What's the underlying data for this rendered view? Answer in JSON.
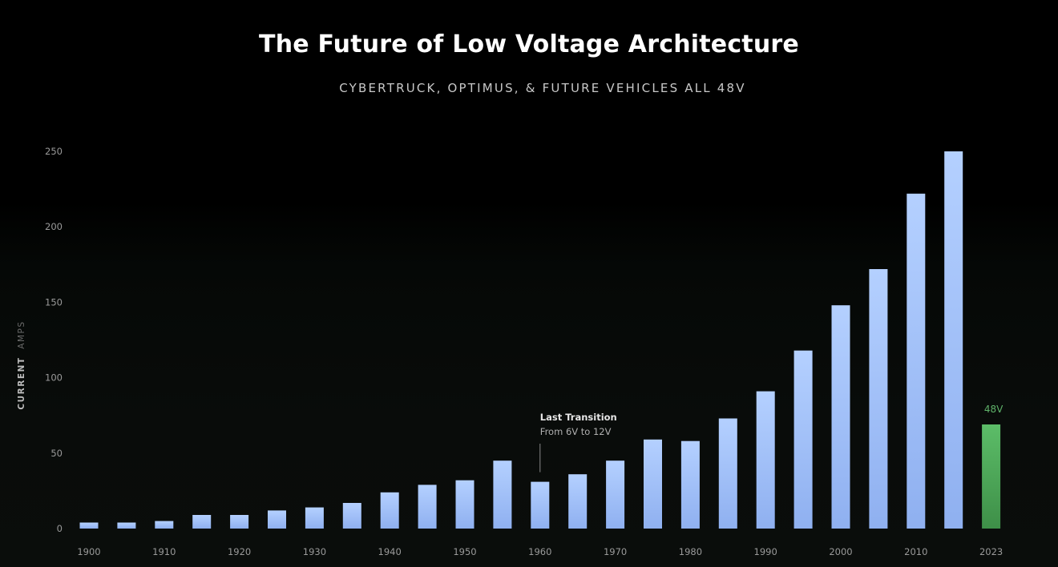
{
  "chart_data": {
    "type": "bar",
    "title": "The Future of Low Voltage Architecture",
    "subtitle": "CYBERTRUCK, OPTIMUS, & FUTURE VEHICLES ALL 48V",
    "ylabel": "CURRENT AMPS",
    "ylabel_parts": [
      "CURRENT",
      "AMPS"
    ],
    "xlabel": "",
    "ylim": [
      0,
      250
    ],
    "yticks": [
      "0",
      "50",
      "100",
      "150",
      "200",
      "250"
    ],
    "ytick_values": [
      0,
      50,
      100,
      150,
      200,
      250
    ],
    "grid": false,
    "legend": "none",
    "categories": [
      "1900",
      "1905",
      "1910",
      "1915",
      "1920",
      "1925",
      "1930",
      "1935",
      "1940",
      "1945",
      "1950",
      "1955",
      "1960",
      "1965",
      "1970",
      "1975",
      "1980",
      "1985",
      "1990",
      "1995",
      "2000",
      "2005",
      "2010",
      "2015",
      "2023"
    ],
    "xtick_labels": [
      "1900",
      "",
      "1910",
      "",
      "1920",
      "",
      "1930",
      "",
      "1940",
      "",
      "1950",
      "",
      "1960",
      "",
      "1970",
      "",
      "1980",
      "",
      "1990",
      "",
      "2000",
      "",
      "2010",
      "",
      "2023"
    ],
    "values": [
      4,
      4,
      5,
      9,
      9,
      12,
      14,
      17,
      24,
      29,
      32,
      45,
      31,
      36,
      45,
      59,
      58,
      73,
      91,
      118,
      148,
      172,
      222,
      250,
      69
    ],
    "bar_colors": [
      "#a8c6ff",
      "#a8c6ff",
      "#a8c6ff",
      "#a8c6ff",
      "#a8c6ff",
      "#a8c6ff",
      "#a8c6ff",
      "#a8c6ff",
      "#a8c6ff",
      "#a8c6ff",
      "#a8c6ff",
      "#a8c6ff",
      "#a8c6ff",
      "#a8c6ff",
      "#a8c6ff",
      "#a8c6ff",
      "#a8c6ff",
      "#a8c6ff",
      "#a8c6ff",
      "#a8c6ff",
      "#a8c6ff",
      "#a8c6ff",
      "#a8c6ff",
      "#a8c6ff",
      "#54b060"
    ],
    "bar_labels": [
      {
        "index": 24,
        "text": "48V"
      }
    ],
    "annotations": [
      {
        "index": 12,
        "title": "Last Transition",
        "text": "From 6V to 12V"
      }
    ]
  }
}
